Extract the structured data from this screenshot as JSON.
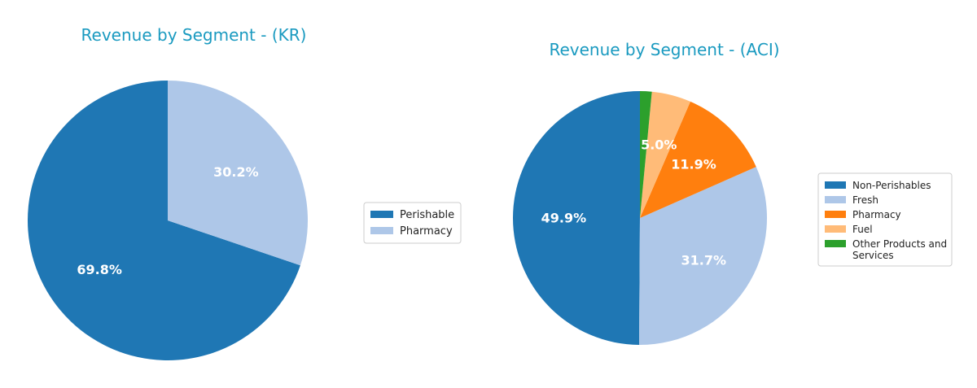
{
  "chart_data": [
    {
      "type": "pie",
      "title": "Revenue by Segment - (KR)",
      "legend_position": "right",
      "categories": [
        "Perishable",
        "Pharmacy"
      ],
      "values": [
        69.8,
        30.2
      ],
      "labels": [
        "69.8%",
        "30.2%"
      ],
      "colors": [
        "#1f77b4",
        "#aec7e8"
      ]
    },
    {
      "type": "pie",
      "title": "Revenue by Segment - (ACI)",
      "legend_position": "right",
      "categories": [
        "Non-Perishables",
        "Fresh",
        "Pharmacy",
        "Fuel",
        "Other Products and Services"
      ],
      "values": [
        49.9,
        31.7,
        11.9,
        5.0,
        1.5
      ],
      "labels": [
        "49.9%",
        "31.7%",
        "11.9%",
        "5.0%",
        ""
      ],
      "colors": [
        "#1f77b4",
        "#aec7e8",
        "#ff7f0e",
        "#ffbb78",
        "#2ca02c"
      ]
    }
  ]
}
